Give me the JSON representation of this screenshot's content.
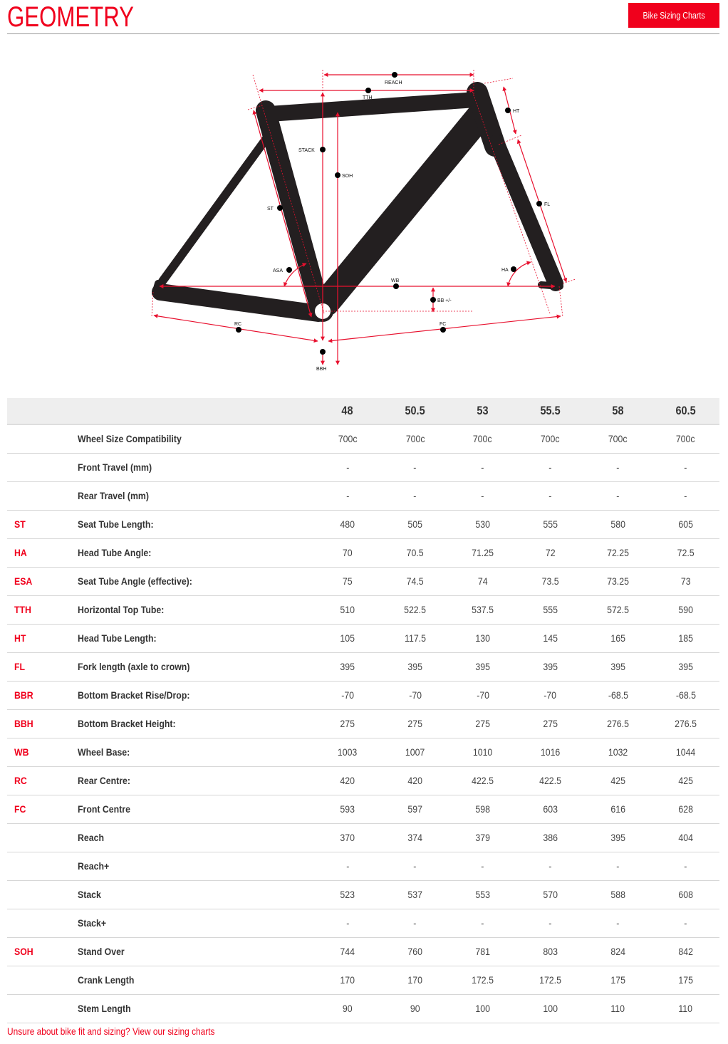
{
  "header": {
    "title": "GEOMETRY",
    "button_label": "Bike Sizing Charts"
  },
  "colors": {
    "accent": "#f0001c",
    "frame": "#231f20"
  },
  "diagram": {
    "labels": {
      "reach": "REACH",
      "tth": "TTH",
      "ht": "HT",
      "stack": "STACK",
      "soh": "SOH",
      "st": "ST",
      "fl": "FL",
      "asa": "ASA",
      "ha": "HA",
      "wb": "WB",
      "bb": "BB +/-",
      "rc": "RC",
      "fc": "FC",
      "bbh": "BBH"
    }
  },
  "table": {
    "sizes": [
      "48",
      "50.5",
      "53",
      "55.5",
      "58",
      "60.5"
    ],
    "rows": [
      {
        "code": "",
        "label": "Wheel Size Compatibility",
        "values": [
          "700c",
          "700c",
          "700c",
          "700c",
          "700c",
          "700c"
        ]
      },
      {
        "code": "",
        "label": "Front Travel (mm)",
        "values": [
          "-",
          "-",
          "-",
          "-",
          "-",
          "-"
        ]
      },
      {
        "code": "",
        "label": "Rear Travel (mm)",
        "values": [
          "-",
          "-",
          "-",
          "-",
          "-",
          "-"
        ]
      },
      {
        "code": "ST",
        "label": "Seat Tube Length:",
        "values": [
          "480",
          "505",
          "530",
          "555",
          "580",
          "605"
        ]
      },
      {
        "code": "HA",
        "label": "Head Tube Angle:",
        "values": [
          "70",
          "70.5",
          "71.25",
          "72",
          "72.25",
          "72.5"
        ]
      },
      {
        "code": "ESA",
        "label": "Seat Tube Angle (effective):",
        "values": [
          "75",
          "74.5",
          "74",
          "73.5",
          "73.25",
          "73"
        ]
      },
      {
        "code": "TTH",
        "label": "Horizontal Top Tube:",
        "values": [
          "510",
          "522.5",
          "537.5",
          "555",
          "572.5",
          "590"
        ]
      },
      {
        "code": "HT",
        "label": "Head Tube Length:",
        "values": [
          "105",
          "117.5",
          "130",
          "145",
          "165",
          "185"
        ]
      },
      {
        "code": "FL",
        "label": "Fork length (axle to crown)",
        "values": [
          "395",
          "395",
          "395",
          "395",
          "395",
          "395"
        ]
      },
      {
        "code": "BBR",
        "label": "Bottom Bracket Rise/Drop:",
        "values": [
          "-70",
          "-70",
          "-70",
          "-70",
          "-68.5",
          "-68.5"
        ]
      },
      {
        "code": "BBH",
        "label": "Bottom Bracket Height:",
        "values": [
          "275",
          "275",
          "275",
          "275",
          "276.5",
          "276.5"
        ]
      },
      {
        "code": "WB",
        "label": "Wheel Base:",
        "values": [
          "1003",
          "1007",
          "1010",
          "1016",
          "1032",
          "1044"
        ]
      },
      {
        "code": "RC",
        "label": "Rear Centre:",
        "values": [
          "420",
          "420",
          "422.5",
          "422.5",
          "425",
          "425"
        ]
      },
      {
        "code": "FC",
        "label": "Front Centre",
        "values": [
          "593",
          "597",
          "598",
          "603",
          "616",
          "628"
        ]
      },
      {
        "code": "",
        "label": "Reach",
        "values": [
          "370",
          "374",
          "379",
          "386",
          "395",
          "404"
        ]
      },
      {
        "code": "",
        "label": "Reach+",
        "values": [
          "-",
          "-",
          "-",
          "-",
          "-",
          "-"
        ]
      },
      {
        "code": "",
        "label": "Stack",
        "values": [
          "523",
          "537",
          "553",
          "570",
          "588",
          "608"
        ]
      },
      {
        "code": "",
        "label": "Stack+",
        "values": [
          "-",
          "-",
          "-",
          "-",
          "-",
          "-"
        ]
      },
      {
        "code": "SOH",
        "label": "Stand Over",
        "values": [
          "744",
          "760",
          "781",
          "803",
          "824",
          "842"
        ]
      },
      {
        "code": "",
        "label": "Crank Length",
        "values": [
          "170",
          "170",
          "172.5",
          "172.5",
          "175",
          "175"
        ]
      },
      {
        "code": "",
        "label": "Stem Length",
        "values": [
          "90",
          "90",
          "100",
          "100",
          "110",
          "110"
        ]
      }
    ]
  },
  "footer": {
    "link_text": "Unsure about bike fit and sizing? View our sizing charts"
  }
}
